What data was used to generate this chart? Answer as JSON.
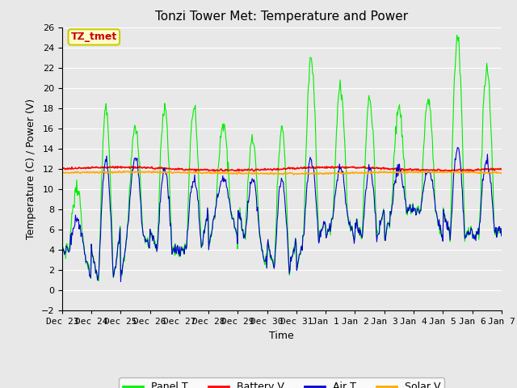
{
  "title": "Tonzi Tower Met: Temperature and Power",
  "ylabel": "Temperature (C) / Power (V)",
  "xlabel": "Time",
  "ylim": [
    -2,
    26
  ],
  "yticks": [
    -2,
    0,
    2,
    4,
    6,
    8,
    10,
    12,
    14,
    16,
    18,
    20,
    22,
    24,
    26
  ],
  "plot_bg_color": "#e8e8e8",
  "fig_bg_color": "#e8e8e8",
  "annotation_text": "TZ_tmet",
  "annotation_fg": "#cc0000",
  "annotation_bg": "#ffffcc",
  "annotation_border": "#cccc00",
  "legend_entries": [
    "Panel T",
    "Battery V",
    "Air T",
    "Solar V"
  ],
  "legend_colors": [
    "#00ee00",
    "#ff0000",
    "#0000cc",
    "#ffaa00"
  ],
  "grid_color": "#ffffff",
  "title_fontsize": 11,
  "label_fontsize": 9,
  "tick_fontsize": 8,
  "battery_v_mean": 12.0,
  "solar_v_mean": 11.6,
  "num_days": 15
}
